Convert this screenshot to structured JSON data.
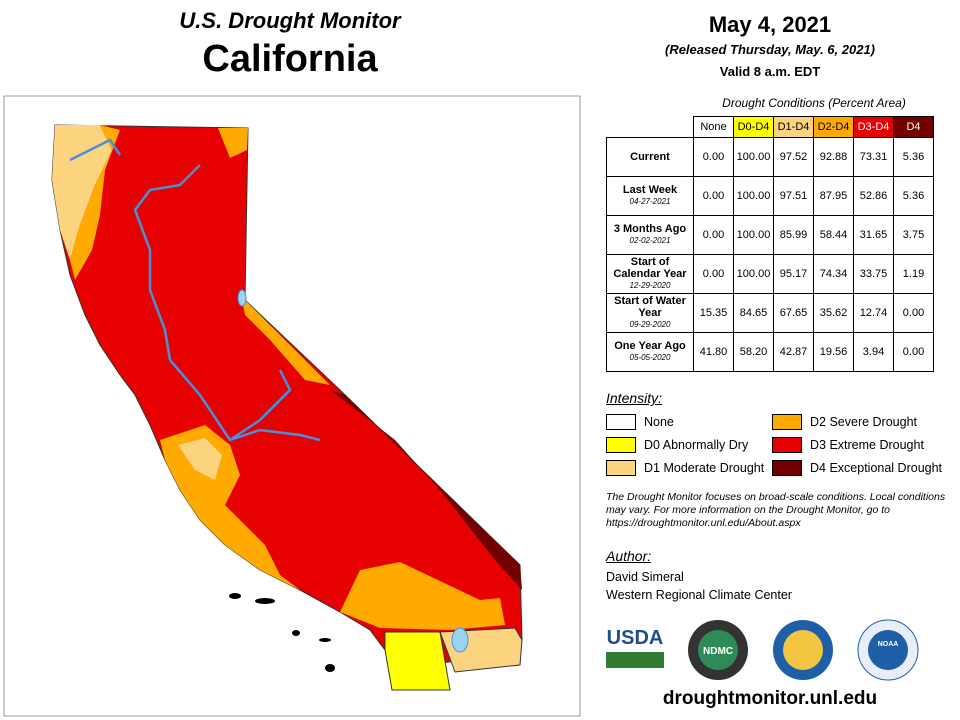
{
  "header": {
    "title": "U.S. Drought Monitor",
    "state": "California",
    "date": "May 4, 2021",
    "released": "(Released Thursday, May. 6, 2021)",
    "valid": "Valid 8 a.m. EDT"
  },
  "table": {
    "caption": "Drought Conditions (Percent Area)",
    "columns": [
      {
        "label": "None",
        "color": "#ffffff",
        "text": "#000000"
      },
      {
        "label": "D0-D4",
        "color": "#ffff00",
        "text": "#000000"
      },
      {
        "label": "D1-D4",
        "color": "#fcd37f",
        "text": "#000000"
      },
      {
        "label": "D2-D4",
        "color": "#ffaa00",
        "text": "#000000"
      },
      {
        "label": "D3-D4",
        "color": "#e60000",
        "text": "#ffffff"
      },
      {
        "label": "D4",
        "color": "#730000",
        "text": "#ffffff"
      }
    ],
    "rows": [
      {
        "label": "Current",
        "values": [
          "0.00",
          "100.00",
          "97.52",
          "92.88",
          "73.31",
          "5.36"
        ]
      },
      {
        "label": "Last Week",
        "date": "04-27-2021",
        "values": [
          "0.00",
          "100.00",
          "97.51",
          "87.95",
          "52.86",
          "5.36"
        ]
      },
      {
        "label": "3 Months Ago",
        "date": "02-02-2021",
        "values": [
          "0.00",
          "100.00",
          "85.99",
          "58.44",
          "31.65",
          "3.75"
        ]
      },
      {
        "label": "Start of Calendar Year",
        "date": "12-29-2020",
        "values": [
          "0.00",
          "100.00",
          "95.17",
          "74.34",
          "33.75",
          "1.19"
        ]
      },
      {
        "label": "Start of Water Year",
        "date": "09-29-2020",
        "values": [
          "15.35",
          "84.65",
          "67.65",
          "35.62",
          "12.74",
          "0.00"
        ]
      },
      {
        "label": "One Year Ago",
        "date": "05-05-2020",
        "values": [
          "41.80",
          "58.20",
          "42.87",
          "19.56",
          "3.94",
          "0.00"
        ]
      }
    ]
  },
  "legend": {
    "title": "Intensity:",
    "items": [
      {
        "label": "None",
        "color": "#ffffff"
      },
      {
        "label": "D0 Abnormally Dry",
        "color": "#ffff00"
      },
      {
        "label": "D1 Moderate Drought",
        "color": "#fcd37f"
      },
      {
        "label": "D2 Severe Drought",
        "color": "#ffaa00"
      },
      {
        "label": "D3 Extreme Drought",
        "color": "#e60000"
      },
      {
        "label": "D4 Exceptional Drought",
        "color": "#730000"
      }
    ]
  },
  "note": "The Drought Monitor focuses on broad-scale conditions. Local conditions may vary. For more information on the Drought Monitor, go to https://droughtmonitor.unl.edu/About.aspx",
  "author": {
    "title": "Author:",
    "name": "David Simeral",
    "org": "Western Regional Climate Center"
  },
  "logos": [
    "USDA",
    "NDMC",
    "NOAA"
  ],
  "footer": "droughtmonitor.unl.edu"
}
